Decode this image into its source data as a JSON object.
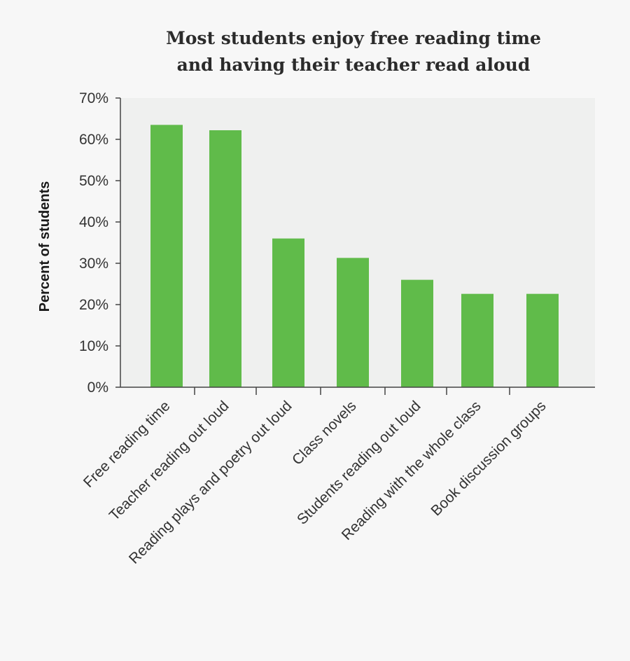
{
  "chart_data": {
    "type": "bar",
    "title_lines": [
      "Most students enjoy free reading time",
      "and having their teacher read aloud"
    ],
    "xlabel": "",
    "ylabel": "Percent of students",
    "categories": [
      "Free reading time",
      "Teacher reading out loud",
      "Reading plays and poetry out loud",
      "Class novels",
      "Students reading out loud",
      "Reading with the whole class",
      "Book discussion groups"
    ],
    "values": [
      63.5,
      62.2,
      36,
      31.3,
      26,
      22.6,
      22.6
    ],
    "ylim": [
      0,
      70
    ],
    "yticks": [
      0,
      10,
      20,
      30,
      40,
      50,
      60,
      70
    ],
    "ytick_labels": [
      "0%",
      "10%",
      "20%",
      "30%",
      "40%",
      "50%",
      "60%",
      "70%"
    ],
    "grid": false,
    "legend": "none",
    "colors": {
      "bar": "#60bb4a",
      "plot_background": "#eff0ef",
      "axis": "#444444"
    }
  }
}
